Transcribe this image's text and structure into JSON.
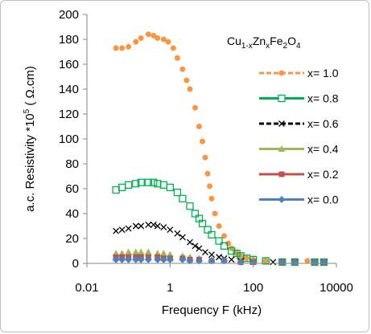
{
  "chart_data": {
    "type": "scatter",
    "title": "",
    "xlabel": "Frequency F  (kHz)",
    "ylabel_text": "a.c. Resistivity *10",
    "ylabel_sup": "5",
    "ylabel_unit": "  ( Ω.cm)",
    "xscale": "log",
    "xlim": [
      0.01,
      10000
    ],
    "ylim": [
      0,
      200
    ],
    "x_ticks": [
      {
        "value": 0.01,
        "label": "0.01"
      },
      {
        "value": 1,
        "label": "1"
      },
      {
        "value": 100,
        "label": "100"
      },
      {
        "value": 10000,
        "label": "10000"
      }
    ],
    "y_ticks": [
      {
        "value": 0,
        "label": "0"
      },
      {
        "value": 20,
        "label": "20"
      },
      {
        "value": 40,
        "label": "40"
      },
      {
        "value": 60,
        "label": "60"
      },
      {
        "value": 80,
        "label": "80"
      },
      {
        "value": 100,
        "label": "100"
      },
      {
        "value": 120,
        "label": "120"
      },
      {
        "value": 140,
        "label": "140"
      },
      {
        "value": 160,
        "label": "160"
      },
      {
        "value": 180,
        "label": "180"
      },
      {
        "value": 200,
        "label": "200"
      }
    ],
    "grid": false,
    "legend_position": "right",
    "annotation": {
      "parts": [
        "Cu",
        "1-x",
        "Zn",
        "x",
        "Fe",
        "2",
        "O",
        "4"
      ]
    },
    "series": [
      {
        "name": "x= 1.0",
        "color": "#f79646",
        "marker": "circle",
        "line": "dashed",
        "points": [
          [
            0.05,
            173
          ],
          [
            0.07,
            173
          ],
          [
            0.1,
            174
          ],
          [
            0.15,
            178
          ],
          [
            0.2,
            181
          ],
          [
            0.3,
            184
          ],
          [
            0.4,
            183
          ],
          [
            0.5,
            181
          ],
          [
            0.7,
            180
          ],
          [
            0.9,
            178
          ],
          [
            1.2,
            173
          ],
          [
            1.5,
            165
          ],
          [
            2,
            156
          ],
          [
            2.5,
            147
          ],
          [
            3,
            140
          ],
          [
            4,
            125
          ],
          [
            5,
            110
          ],
          [
            6,
            98
          ],
          [
            7,
            85
          ],
          [
            8,
            72
          ],
          [
            9,
            62
          ],
          [
            10,
            52
          ],
          [
            12,
            40
          ],
          [
            15,
            30
          ],
          [
            20,
            22
          ],
          [
            25,
            16
          ],
          [
            30,
            12
          ],
          [
            40,
            8
          ],
          [
            50,
            6
          ],
          [
            70,
            4
          ],
          [
            100,
            3
          ],
          [
            200,
            2
          ],
          [
            500,
            2
          ],
          [
            1000,
            2
          ],
          [
            2000,
            2
          ],
          [
            3000,
            1
          ],
          [
            5000,
            1
          ]
        ]
      },
      {
        "name": "x= 0.8",
        "color": "#00b050",
        "marker": "open-square",
        "line": "solid",
        "points": [
          [
            0.05,
            59
          ],
          [
            0.07,
            61
          ],
          [
            0.1,
            63
          ],
          [
            0.15,
            64
          ],
          [
            0.2,
            65
          ],
          [
            0.3,
            65
          ],
          [
            0.4,
            65
          ],
          [
            0.5,
            64
          ],
          [
            0.7,
            63
          ],
          [
            1,
            61
          ],
          [
            1.5,
            57
          ],
          [
            2,
            52
          ],
          [
            3,
            46
          ],
          [
            4,
            40
          ],
          [
            5,
            36
          ],
          [
            6,
            32
          ],
          [
            8,
            27
          ],
          [
            10,
            23
          ],
          [
            15,
            18
          ],
          [
            20,
            14
          ],
          [
            30,
            10
          ],
          [
            40,
            8
          ],
          [
            50,
            6
          ],
          [
            70,
            4
          ],
          [
            100,
            3
          ],
          [
            200,
            2
          ],
          [
            500,
            1
          ],
          [
            1000,
            1
          ],
          [
            3000,
            1
          ],
          [
            5000,
            1
          ]
        ]
      },
      {
        "name": "x= 0.6",
        "color": "#000000",
        "marker": "x",
        "line": "dashed",
        "points": [
          [
            0.05,
            26
          ],
          [
            0.07,
            27
          ],
          [
            0.1,
            28
          ],
          [
            0.15,
            30
          ],
          [
            0.2,
            30
          ],
          [
            0.3,
            31
          ],
          [
            0.4,
            31
          ],
          [
            0.5,
            30
          ],
          [
            0.7,
            29
          ],
          [
            1,
            27
          ],
          [
            1.5,
            24
          ],
          [
            2,
            21
          ],
          [
            3,
            17
          ],
          [
            4,
            14
          ],
          [
            5,
            12
          ],
          [
            7,
            9
          ],
          [
            10,
            7
          ],
          [
            15,
            5
          ],
          [
            20,
            4
          ],
          [
            30,
            3
          ],
          [
            50,
            2
          ],
          [
            100,
            1
          ],
          [
            300,
            1
          ],
          [
            1000,
            1
          ],
          [
            3000,
            1
          ],
          [
            5000,
            1
          ]
        ]
      },
      {
        "name": "x= 0.4",
        "color": "#9bbb59",
        "marker": "triangle",
        "line": "solid",
        "points": [
          [
            0.05,
            8
          ],
          [
            0.07,
            8
          ],
          [
            0.1,
            9
          ],
          [
            0.15,
            9
          ],
          [
            0.2,
            9
          ],
          [
            0.3,
            9
          ],
          [
            0.5,
            8
          ],
          [
            0.7,
            8
          ],
          [
            1,
            7
          ],
          [
            2,
            6
          ],
          [
            3,
            5
          ],
          [
            5,
            4
          ],
          [
            10,
            3
          ],
          [
            20,
            2
          ],
          [
            50,
            2
          ],
          [
            100,
            1
          ],
          [
            500,
            1
          ],
          [
            1000,
            1
          ],
          [
            3000,
            1
          ],
          [
            5000,
            1
          ]
        ]
      },
      {
        "name": "x= 0.2",
        "color": "#c0504d",
        "marker": "square",
        "line": "solid",
        "points": [
          [
            0.05,
            5
          ],
          [
            0.07,
            5
          ],
          [
            0.1,
            5
          ],
          [
            0.15,
            5
          ],
          [
            0.2,
            5
          ],
          [
            0.3,
            5
          ],
          [
            0.5,
            5
          ],
          [
            0.7,
            4
          ],
          [
            1,
            4
          ],
          [
            2,
            4
          ],
          [
            3,
            3
          ],
          [
            5,
            3
          ],
          [
            10,
            2
          ],
          [
            20,
            2
          ],
          [
            50,
            1
          ],
          [
            100,
            1
          ],
          [
            500,
            1
          ],
          [
            1000,
            1
          ],
          [
            3000,
            1
          ],
          [
            5000,
            1
          ]
        ]
      },
      {
        "name": "x= 0.0",
        "color": "#4f81bd",
        "marker": "diamond",
        "line": "solid",
        "points": [
          [
            0.05,
            3
          ],
          [
            0.07,
            3
          ],
          [
            0.1,
            3
          ],
          [
            0.15,
            3
          ],
          [
            0.2,
            3
          ],
          [
            0.3,
            3
          ],
          [
            0.5,
            3
          ],
          [
            0.7,
            3
          ],
          [
            1,
            3
          ],
          [
            2,
            3
          ],
          [
            3,
            2
          ],
          [
            5,
            2
          ],
          [
            10,
            2
          ],
          [
            20,
            2
          ],
          [
            50,
            1
          ],
          [
            100,
            1
          ],
          [
            500,
            1
          ],
          [
            1000,
            1
          ],
          [
            3000,
            1
          ],
          [
            5000,
            1
          ]
        ]
      }
    ]
  }
}
